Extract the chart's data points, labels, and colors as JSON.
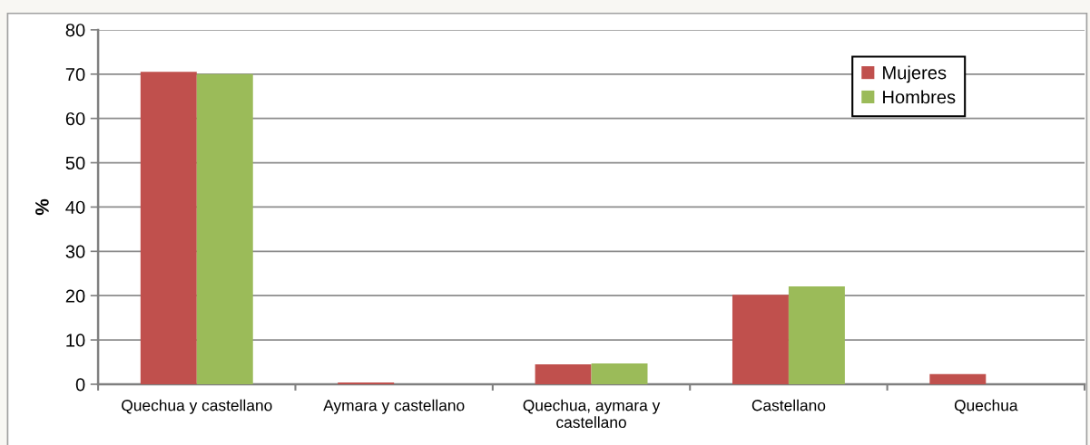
{
  "chart_data": {
    "type": "bar",
    "ylabel": "%",
    "categories": [
      "Quechua y castellano",
      "Aymara y castellano",
      "Quechua, aymara y\ncastellano",
      "Castellano",
      "Quechua"
    ],
    "series": [
      {
        "name": "Mujeres",
        "color": "#c0504d",
        "values": [
          70.5,
          0.4,
          4.5,
          20.2,
          2.3
        ]
      },
      {
        "name": "Hombres",
        "color": "#9bbb59",
        "values": [
          70.0,
          0,
          4.7,
          22.1,
          0
        ]
      }
    ],
    "ylim": [
      0,
      80
    ],
    "yticks": [
      0,
      10,
      20,
      30,
      40,
      50,
      60,
      70,
      80
    ],
    "grid": "y",
    "legend": "top right"
  }
}
